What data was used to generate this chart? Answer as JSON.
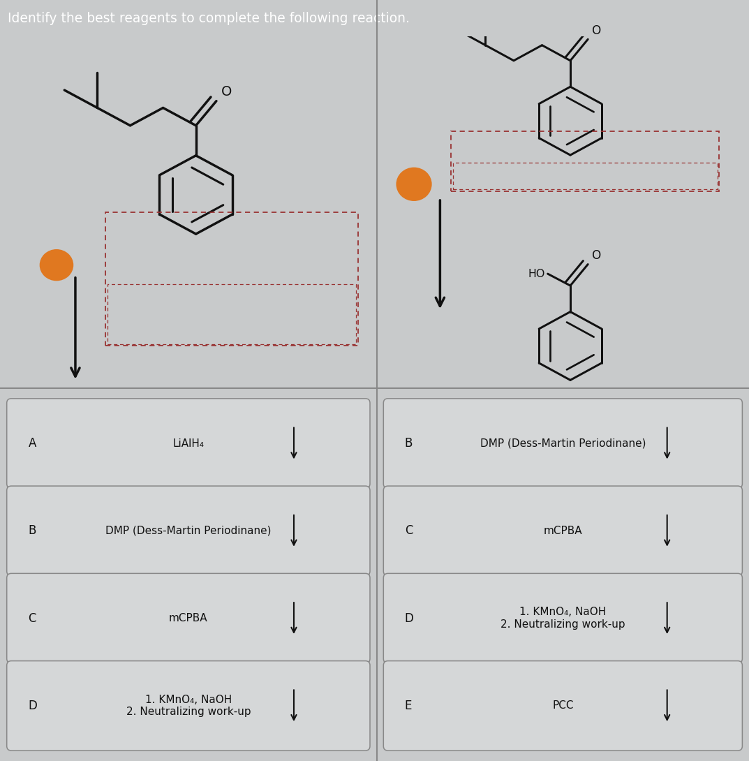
{
  "title": "Identify the best reagents to complete the following reaction.",
  "title_color": "#ffffff",
  "title_bg": "#c0392b",
  "bg_top_left": "#b8bfc3",
  "bg_top_right": "#a8b0b5",
  "bg_bottom": "#c8cacb",
  "answer_bg": "#d5d7d8",
  "answer_border": "#888888",
  "answer_text_color": "#111111",
  "label_color": "#222222",
  "left_options": [
    {
      "label": "A",
      "text": "LiAlH₄"
    },
    {
      "label": "B",
      "text": "DMP (Dess-Martin Periodinane)"
    },
    {
      "label": "C",
      "text": "mCPBA"
    },
    {
      "label": "D",
      "text": "1. KMnO₄, NaOH\n2. Neutralizing work-up"
    }
  ],
  "right_options": [
    {
      "label": "B",
      "text": "DMP (Dess-Martin Periodinane)"
    },
    {
      "label": "C",
      "text": "mCPBA"
    },
    {
      "label": "D",
      "text": "1. KMnO₄, NaOH\n2. Neutralizing work-up"
    },
    {
      "label": "E",
      "text": "PCC"
    }
  ],
  "dashed_box_color": "#993333",
  "arrow_color": "#111111",
  "orange_dot_color": "#e07820",
  "divider_h_color": "#888888",
  "divider_v_color": "#888888",
  "title_fontsize": 13.5,
  "label_fontsize": 12,
  "option_fontsize": 11
}
